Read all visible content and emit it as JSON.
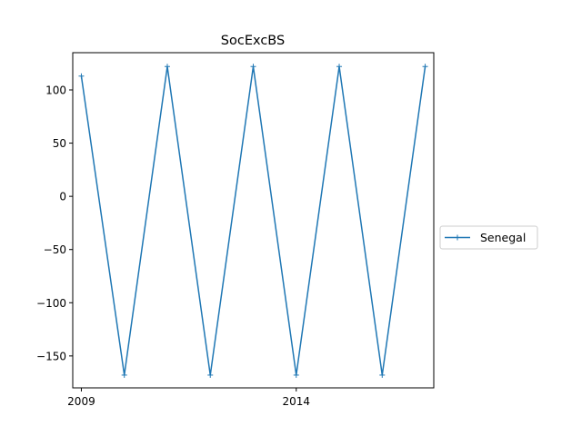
{
  "chart_data": {
    "type": "line",
    "title": "SocExcBS",
    "xlabel": "",
    "ylabel": "",
    "x": [
      2009,
      2010,
      2011,
      2012,
      2013,
      2014,
      2015,
      2016,
      2017
    ],
    "x_ticks": [
      2009,
      2014
    ],
    "y_ticks": [
      -150,
      -100,
      -50,
      0,
      50,
      100
    ],
    "xlim": [
      2008.8,
      2017.2
    ],
    "ylim": [
      -180,
      135
    ],
    "series": [
      {
        "name": "Senegal",
        "color": "#1f77b4",
        "marker": "plus",
        "values": [
          113,
          -168,
          122,
          -168,
          122,
          -168,
          122,
          -168,
          122
        ]
      }
    ],
    "legend": {
      "placement": "right"
    },
    "grid": false
  }
}
